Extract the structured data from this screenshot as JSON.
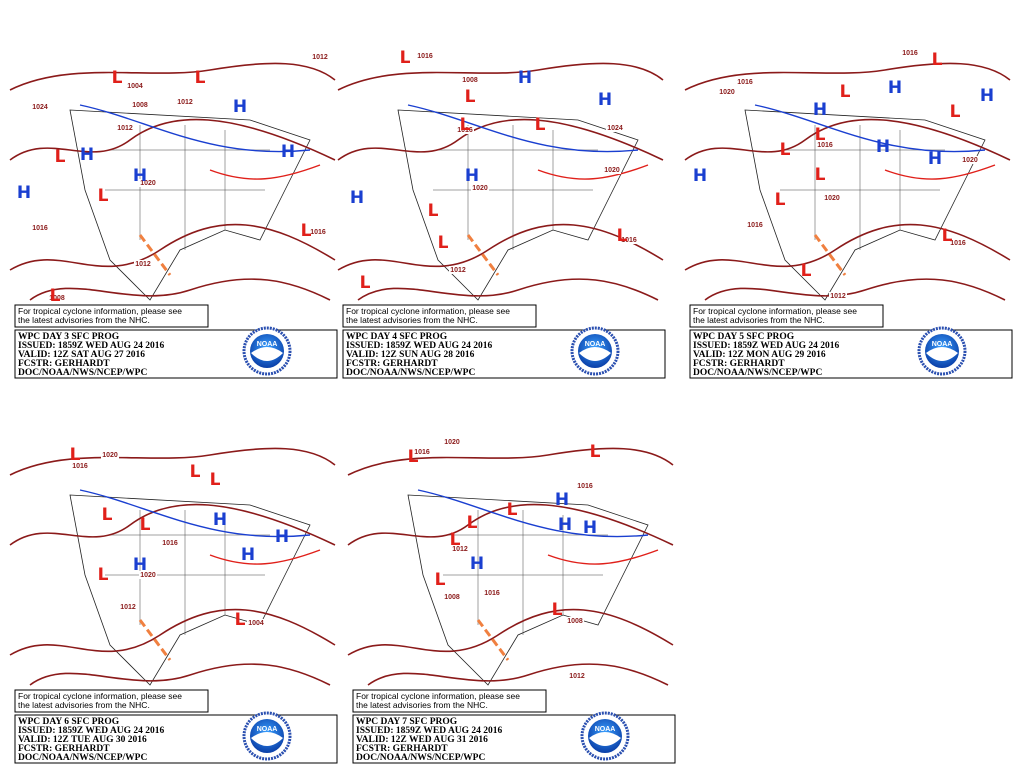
{
  "panels": [
    {
      "note": [
        "For tropical cyclone information, please see",
        "the latest advisories from the NHC."
      ],
      "info": [
        "WPC DAY 3 SFC PROG",
        "ISSUED: 1859Z WED AUG 24 2016",
        "VALID: 12Z SAT AUG 27 2016",
        "FCSTR: GERHARDT",
        "DOC/NOAA/NWS/NCEP/WPC"
      ],
      "logo": "NOAA",
      "centers": [
        "L",
        "L",
        "H",
        "L",
        "H",
        "H",
        "H",
        "H",
        "L",
        "L",
        "L"
      ],
      "isobars": [
        "1004",
        "1024",
        "1012",
        "1012",
        "1008",
        "1020",
        "1016",
        "1012",
        "1016",
        "1008",
        "1012"
      ]
    },
    {
      "note": [
        "For tropical cyclone information, please see",
        "the latest advisories from the NHC."
      ],
      "info": [
        "WPC DAY 4 SFC PROG",
        "ISSUED: 1859Z WED AUG 24 2016",
        "VALID: 12Z SUN AUG 28 2016",
        "FCSTR: GERHARDT",
        "DOC/NOAA/NWS/NCEP/WPC"
      ],
      "logo": "NOAA",
      "centers": [
        "L",
        "L",
        "H",
        "H",
        "L",
        "L",
        "H",
        "H",
        "L",
        "L",
        "L",
        "L"
      ],
      "isobars": [
        "1016",
        "1008",
        "1016",
        "1024",
        "1020",
        "1020",
        "1012",
        "1016"
      ]
    },
    {
      "note": [
        "For tropical cyclone information, please see",
        "the latest advisories from the NHC."
      ],
      "info": [
        "WPC DAY 5 SFC PROG",
        "ISSUED: 1859Z WED AUG 24 2016",
        "VALID: 12Z MON AUG 29 2016",
        "FCSTR: GERHARDT",
        "DOC/NOAA/NWS/NCEP/WPC"
      ],
      "logo": "NOAA",
      "centers": [
        "L",
        "L",
        "H",
        "H",
        "L",
        "H",
        "L",
        "L",
        "H",
        "H",
        "H",
        "L",
        "L",
        "L",
        "L"
      ],
      "isobars": [
        "1016",
        "1016",
        "1020",
        "1016",
        "1020",
        "1016",
        "1020",
        "1016",
        "1012"
      ]
    },
    {
      "note": [
        "For tropical cyclone information, please see",
        "the latest advisories from the NHC."
      ],
      "info": [
        "WPC DAY 6 SFC PROG",
        "ISSUED: 1859Z WED AUG 24 2016",
        "VALID: 12Z TUE AUG 30 2016",
        "FCSTR: GERHARDT",
        "DOC/NOAA/NWS/NCEP/WPC"
      ],
      "logo": "NOAA",
      "centers": [
        "L",
        "L",
        "L",
        "H",
        "L",
        "L",
        "H",
        "H",
        "H",
        "L",
        "L"
      ],
      "isobars": [
        "1020",
        "1016",
        "1016",
        "1020",
        "1012",
        "1004"
      ]
    },
    {
      "note": [
        "For tropical cyclone information, please see",
        "the latest advisories from the NHC."
      ],
      "info": [
        "WPC DAY 7 SFC PROG",
        "ISSUED: 1859Z WED AUG 24 2016",
        "VALID: 12Z WED AUG 31 2016",
        "FCSTR: GERHARDT",
        "DOC/NOAA/NWS/NCEP/WPC"
      ],
      "logo": "NOAA",
      "centers": [
        "L",
        "L",
        "H",
        "H",
        "H",
        "L",
        "L",
        "L",
        "H",
        "L",
        "L"
      ],
      "isobars": [
        "1020",
        "1016",
        "1016",
        "1012",
        "1016",
        "1008",
        "1008",
        "1012"
      ]
    }
  ]
}
